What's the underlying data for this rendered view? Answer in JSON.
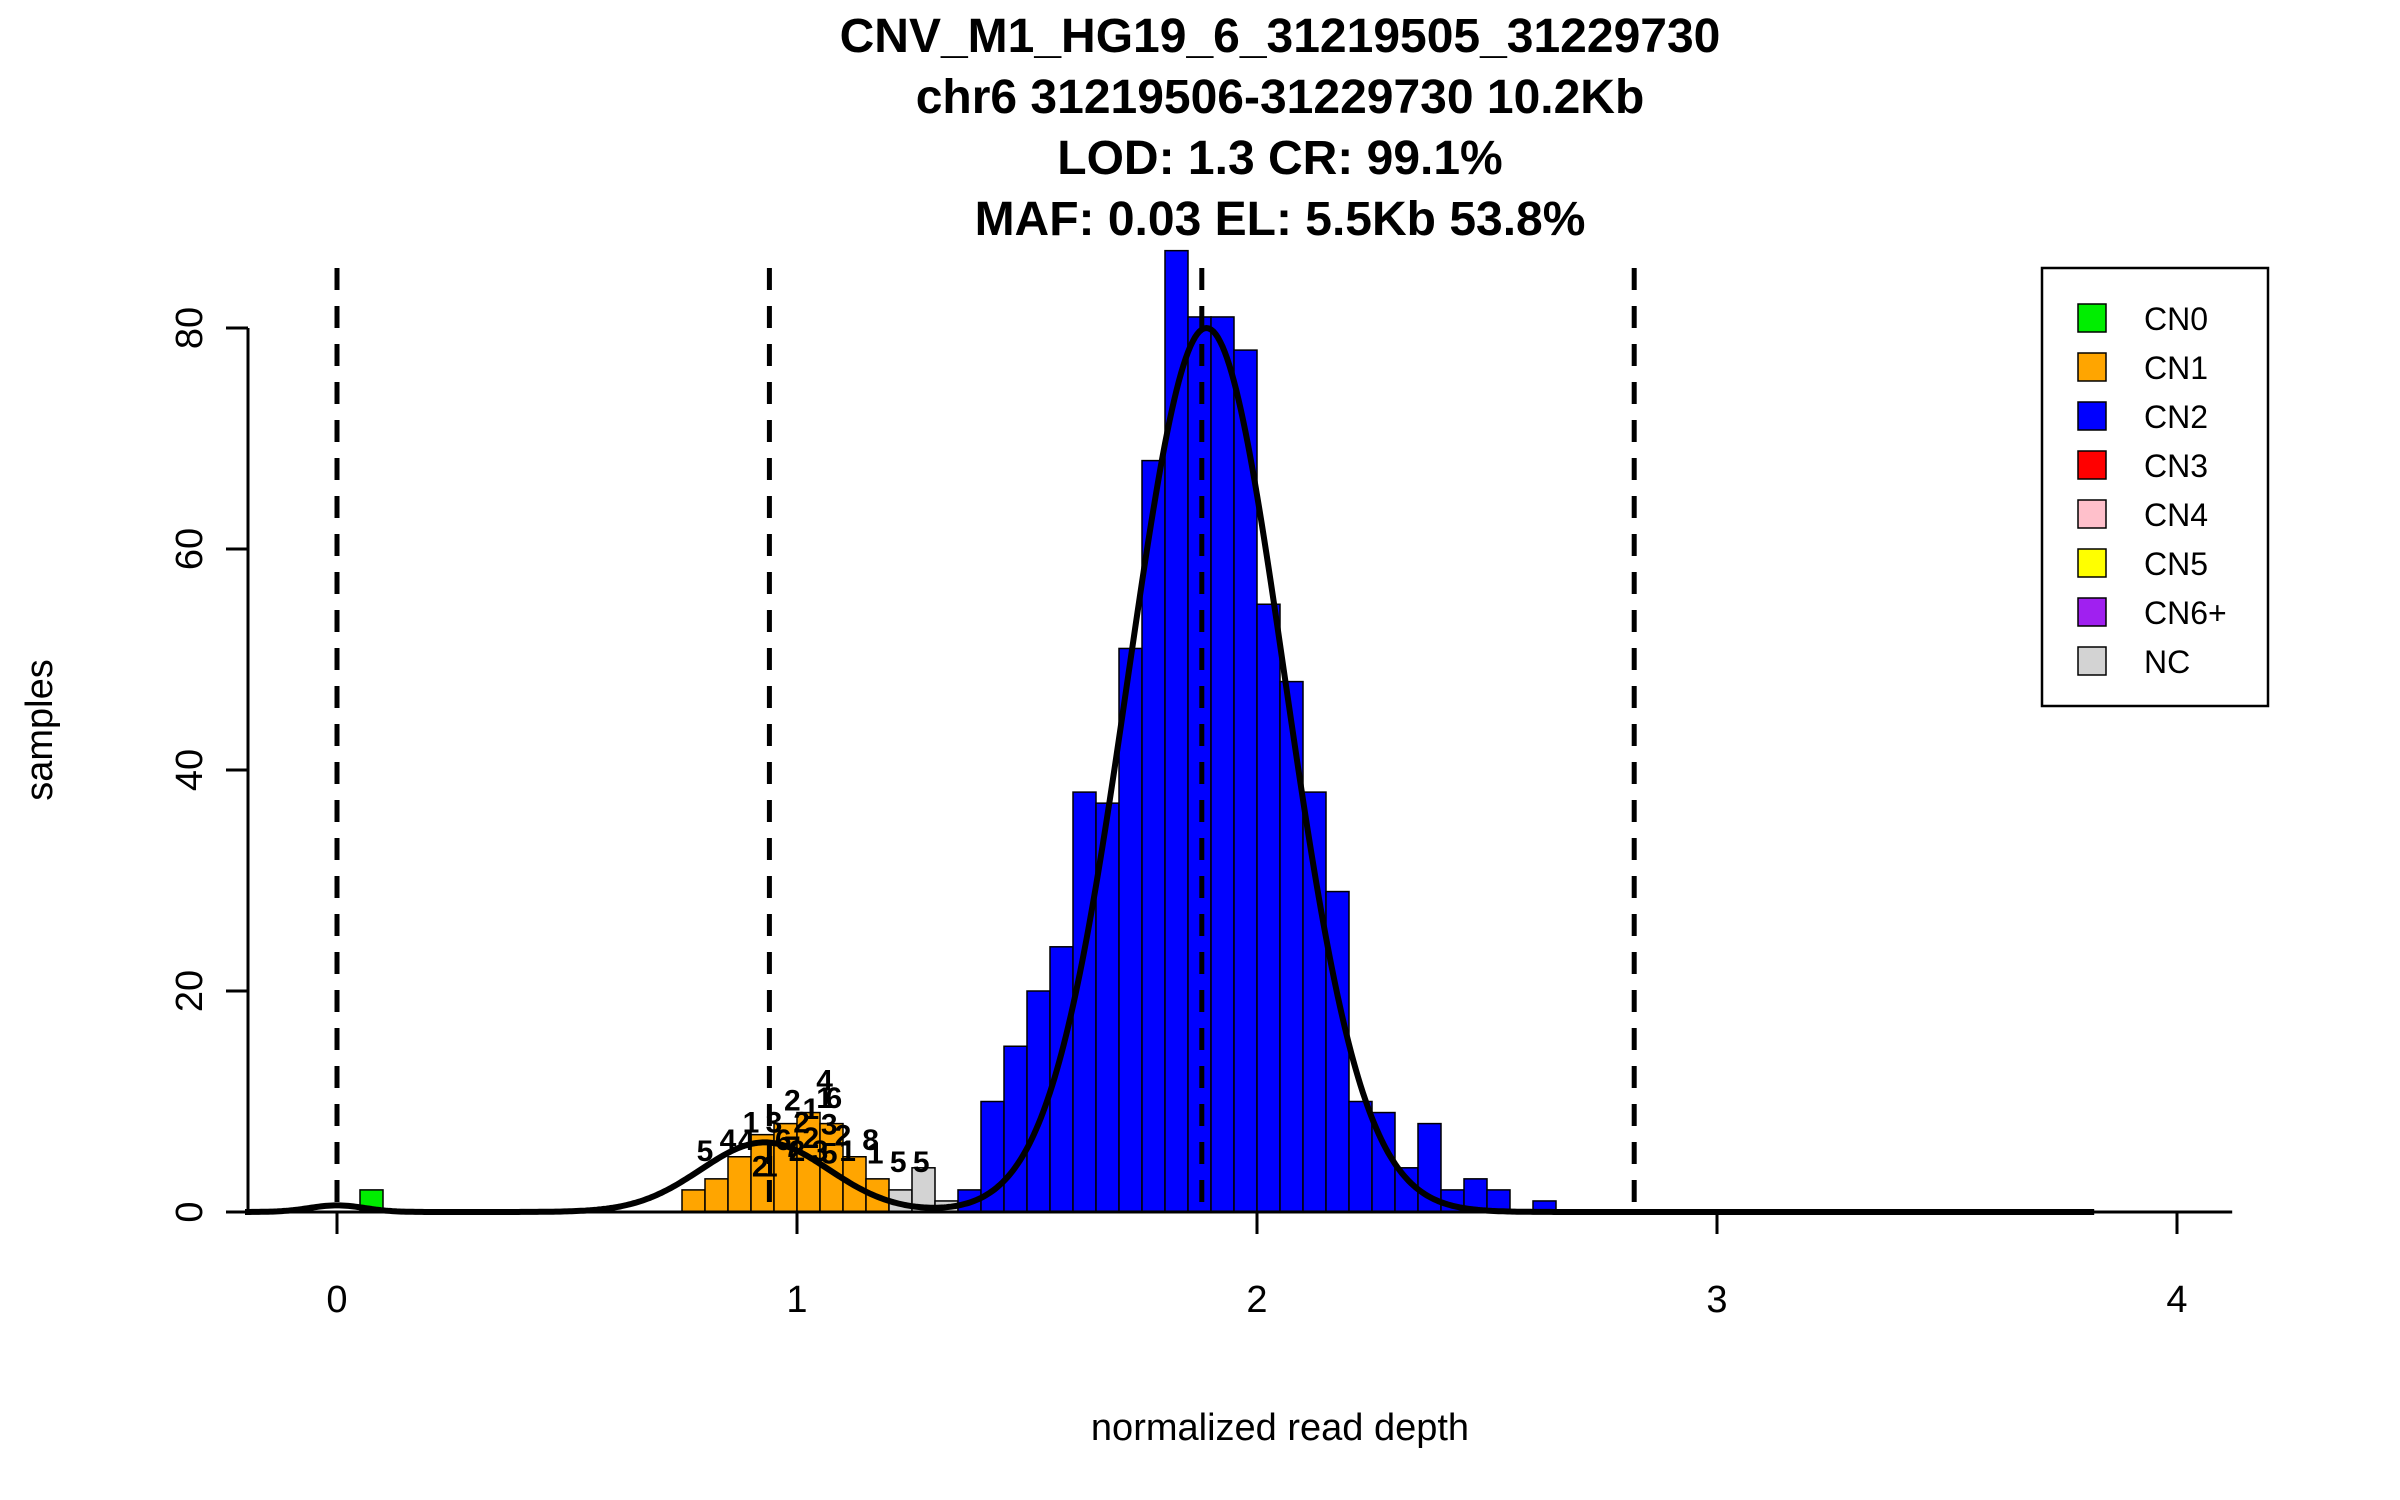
{
  "chart_data": {
    "type": "bar",
    "title_lines": [
      "CNV_M1_HG19_6_31219505_31229730",
      "chr6 31219506-31229730 10.2Kb",
      "LOD: 1.3 CR: 99.1%",
      "MAF: 0.03 EL: 5.5Kb 53.8%"
    ],
    "xlabel": "normalized read depth",
    "ylabel": "samples",
    "xlim": [
      -0.2,
      4.12
    ],
    "ylim": [
      0,
      87
    ],
    "x_ticks": [
      0,
      1,
      2,
      3,
      4
    ],
    "x_tick_labels": [
      "0",
      "1",
      "2",
      "3",
      "4"
    ],
    "y_ticks": [
      0,
      20,
      40,
      60,
      80
    ],
    "y_tick_labels": [
      "0",
      "20",
      "40",
      "60",
      "80"
    ],
    "bin_width": 0.05,
    "bars": [
      {
        "x": 0.075,
        "y": 2,
        "cn": "CN0"
      },
      {
        "x": 0.775,
        "y": 2,
        "cn": "CN1"
      },
      {
        "x": 0.825,
        "y": 3,
        "cn": "CN1"
      },
      {
        "x": 0.875,
        "y": 5,
        "cn": "CN1"
      },
      {
        "x": 0.925,
        "y": 7,
        "cn": "CN1"
      },
      {
        "x": 0.975,
        "y": 8,
        "cn": "CN1"
      },
      {
        "x": 1.025,
        "y": 9,
        "cn": "CN1"
      },
      {
        "x": 1.075,
        "y": 8,
        "cn": "CN1"
      },
      {
        "x": 1.125,
        "y": 5,
        "cn": "CN1"
      },
      {
        "x": 1.175,
        "y": 3,
        "cn": "CN1"
      },
      {
        "x": 1.225,
        "y": 2,
        "cn": "NC"
      },
      {
        "x": 1.275,
        "y": 4,
        "cn": "NC"
      },
      {
        "x": 1.325,
        "y": 1,
        "cn": "NC"
      },
      {
        "x": 1.375,
        "y": 2,
        "cn": "CN2"
      },
      {
        "x": 1.425,
        "y": 10,
        "cn": "CN2"
      },
      {
        "x": 1.475,
        "y": 15,
        "cn": "CN2"
      },
      {
        "x": 1.525,
        "y": 20,
        "cn": "CN2"
      },
      {
        "x": 1.575,
        "y": 24,
        "cn": "CN2"
      },
      {
        "x": 1.625,
        "y": 38,
        "cn": "CN2"
      },
      {
        "x": 1.675,
        "y": 37,
        "cn": "CN2"
      },
      {
        "x": 1.725,
        "y": 51,
        "cn": "CN2"
      },
      {
        "x": 1.775,
        "y": 68,
        "cn": "CN2"
      },
      {
        "x": 1.825,
        "y": 87,
        "cn": "CN2"
      },
      {
        "x": 1.875,
        "y": 81,
        "cn": "CN2"
      },
      {
        "x": 1.925,
        "y": 81,
        "cn": "CN2"
      },
      {
        "x": 1.975,
        "y": 78,
        "cn": "CN2"
      },
      {
        "x": 2.025,
        "y": 55,
        "cn": "CN2"
      },
      {
        "x": 2.075,
        "y": 48,
        "cn": "CN2"
      },
      {
        "x": 2.125,
        "y": 38,
        "cn": "CN2"
      },
      {
        "x": 2.175,
        "y": 29,
        "cn": "CN2"
      },
      {
        "x": 2.225,
        "y": 10,
        "cn": "CN2"
      },
      {
        "x": 2.275,
        "y": 9,
        "cn": "CN2"
      },
      {
        "x": 2.325,
        "y": 4,
        "cn": "CN2"
      },
      {
        "x": 2.375,
        "y": 8,
        "cn": "CN2"
      },
      {
        "x": 2.425,
        "y": 2,
        "cn": "CN2"
      },
      {
        "x": 2.475,
        "y": 3,
        "cn": "CN2"
      },
      {
        "x": 2.525,
        "y": 2,
        "cn": "CN2"
      },
      {
        "x": 2.625,
        "y": 1,
        "cn": "CN2"
      }
    ],
    "density_curve": {
      "components": [
        {
          "mean": 0.0,
          "sd": 0.06,
          "peak": 0.6
        },
        {
          "mean": 0.93,
          "sd": 0.14,
          "peak": 6.3
        },
        {
          "mean": 1.89,
          "sd": 0.17,
          "peak": 80
        }
      ],
      "x_range": [
        -0.2,
        3.82
      ],
      "color": "#000000"
    },
    "cutoff_lines": [
      0.0,
      0.94,
      1.88,
      2.82
    ],
    "cluster_labels": [
      {
        "text": "5",
        "x": 0.8,
        "y": 4.6
      },
      {
        "text": "4",
        "x": 0.85,
        "y": 5.6
      },
      {
        "text": "4",
        "x": 0.89,
        "y": 5.6
      },
      {
        "text": "1",
        "x": 0.9,
        "y": 7.2
      },
      {
        "text": "2",
        "x": 0.92,
        "y": 3.2
      },
      {
        "text": "1",
        "x": 0.94,
        "y": 3.2
      },
      {
        "text": "3",
        "x": 0.95,
        "y": 7.2
      },
      {
        "text": "6",
        "x": 0.97,
        "y": 5.6
      },
      {
        "text": "2",
        "x": 0.99,
        "y": 9.2
      },
      {
        "text": "7",
        "x": 0.99,
        "y": 5.0
      },
      {
        "text": "2",
        "x": 1.0,
        "y": 4.6
      },
      {
        "text": "2",
        "x": 1.01,
        "y": 7.2
      },
      {
        "text": "1",
        "x": 1.03,
        "y": 8.4
      },
      {
        "text": "2",
        "x": 1.03,
        "y": 5.8
      },
      {
        "text": "3",
        "x": 1.05,
        "y": 4.6
      },
      {
        "text": "4",
        "x": 1.06,
        "y": 11.0
      },
      {
        "text": "1",
        "x": 1.06,
        "y": 9.4
      },
      {
        "text": "6",
        "x": 1.08,
        "y": 9.4
      },
      {
        "text": "3",
        "x": 1.07,
        "y": 7.0
      },
      {
        "text": "5",
        "x": 1.07,
        "y": 4.4
      },
      {
        "text": "2",
        "x": 1.1,
        "y": 6.0
      },
      {
        "text": "1",
        "x": 1.11,
        "y": 4.6
      },
      {
        "text": "8",
        "x": 1.16,
        "y": 5.6
      },
      {
        "text": "1",
        "x": 1.17,
        "y": 4.4
      },
      {
        "text": "5",
        "x": 1.22,
        "y": 3.6
      },
      {
        "text": "5",
        "x": 1.27,
        "y": 3.6
      }
    ],
    "legend": {
      "position": "top-right",
      "items": [
        {
          "label": "CN0",
          "color": "#00ee00"
        },
        {
          "label": "CN1",
          "color": "#ffa500"
        },
        {
          "label": "CN2",
          "color": "#0000ff"
        },
        {
          "label": "CN3",
          "color": "#ff0000"
        },
        {
          "label": "CN4",
          "color": "#ffc0cb"
        },
        {
          "label": "CN5",
          "color": "#ffff00"
        },
        {
          "label": "CN6+",
          "color": "#a020f0"
        },
        {
          "label": "NC",
          "color": "#d3d3d3"
        }
      ]
    }
  }
}
